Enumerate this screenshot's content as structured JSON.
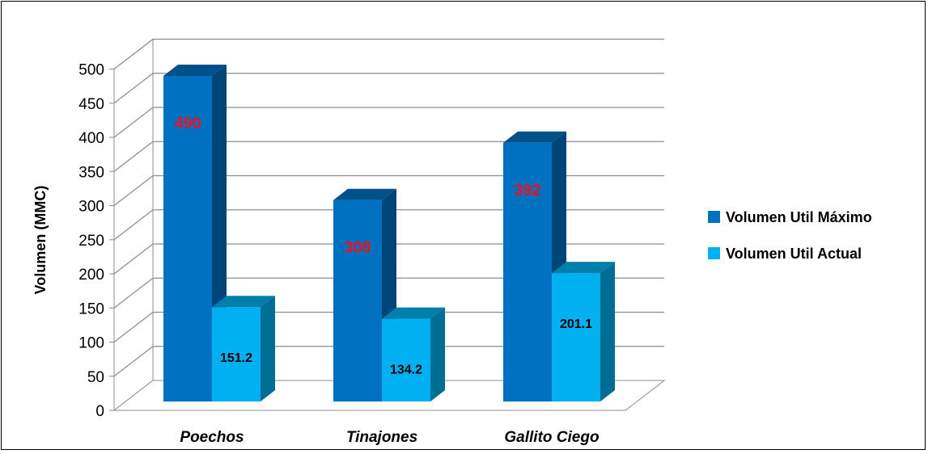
{
  "chart_data": {
    "type": "bar",
    "title": "",
    "xlabel": "",
    "ylabel": "Volumen (MMC)",
    "ylim": [
      0,
      500
    ],
    "yticks": [
      0,
      50,
      100,
      150,
      200,
      250,
      300,
      350,
      400,
      450,
      500
    ],
    "categories": [
      "Poechos",
      "Tinajones",
      "Gallito Ciego"
    ],
    "series": [
      {
        "name": "Volumen Util Máximo",
        "values": [
          490,
          308,
          392
        ],
        "labels": [
          "490",
          "308",
          "392"
        ],
        "color": "#0070c0",
        "label_color": "#e8131f"
      },
      {
        "name": "Volumen Util Actual",
        "values": [
          151.2,
          134.2,
          201.1
        ],
        "labels": [
          "151.2",
          "134.2",
          "201.1"
        ],
        "color": "#00b0f0",
        "label_color": "#000000"
      }
    ],
    "grid": true,
    "style": "3d-column",
    "legend": "right"
  }
}
